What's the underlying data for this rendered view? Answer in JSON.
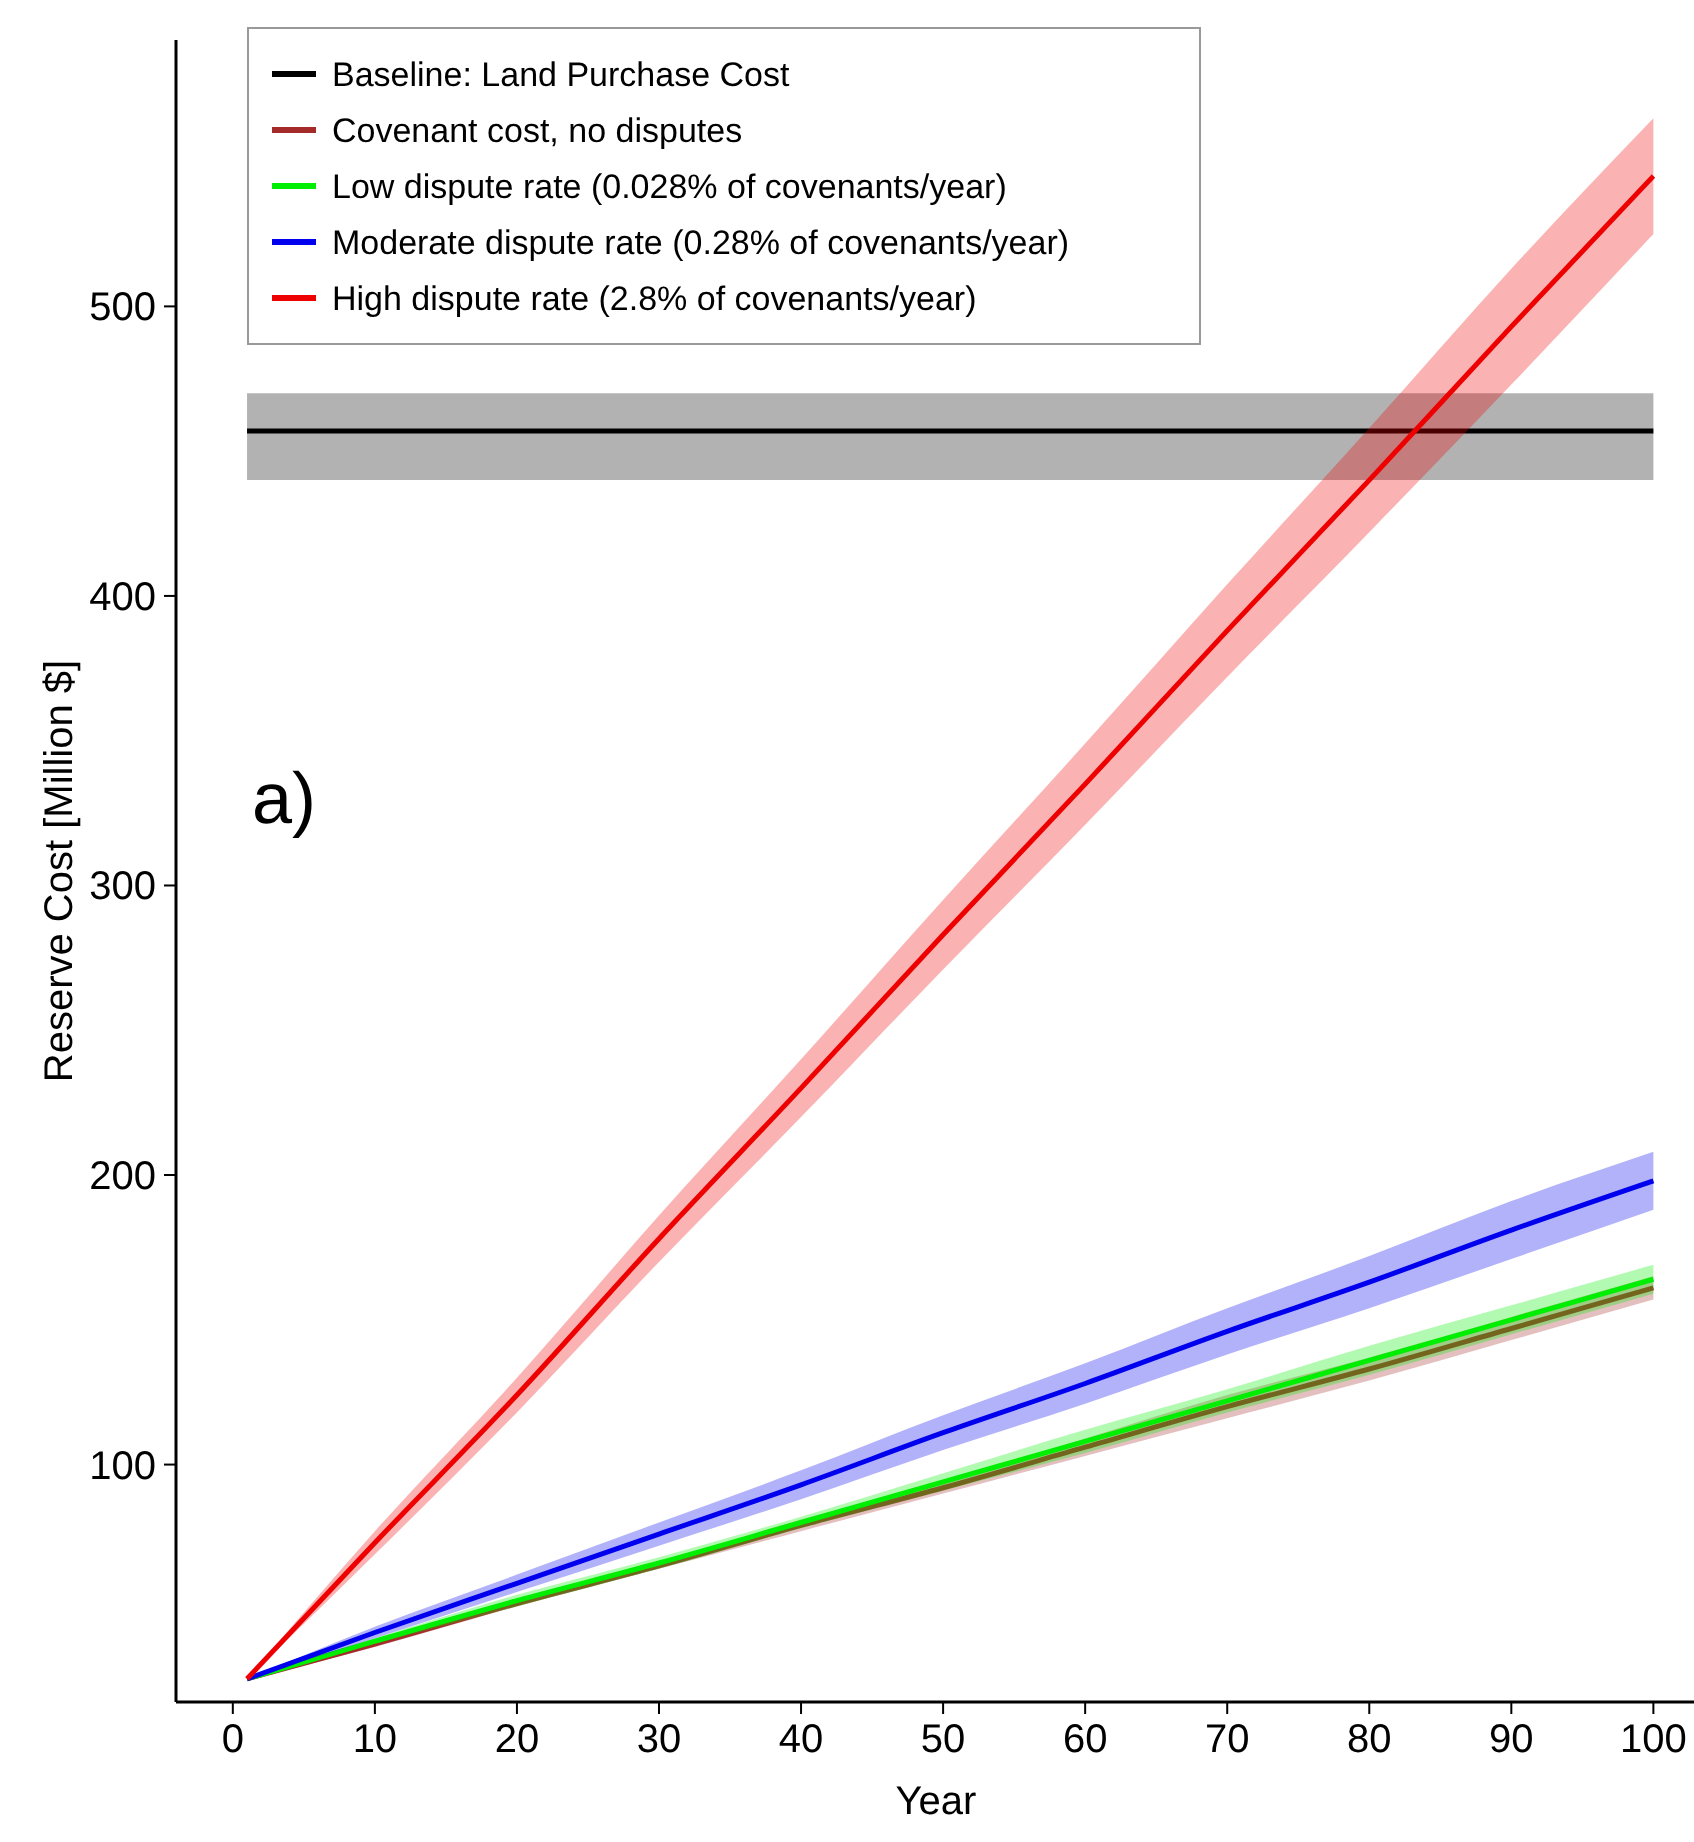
{
  "chart_data": {
    "type": "line",
    "xlabel": "Year",
    "ylabel": "Reserve Cost [Million $]",
    "xlim": [
      -4,
      103
    ],
    "ylim": [
      18,
      592
    ],
    "xticks": [
      0,
      10,
      20,
      30,
      40,
      50,
      60,
      70,
      80,
      90,
      100
    ],
    "yticks": [
      100,
      200,
      300,
      400,
      500
    ],
    "grid": false,
    "legend": "top left",
    "annotations": [
      "a)"
    ],
    "series": [
      {
        "name": "Baseline: Land Purchase Cost",
        "color": "#000000",
        "x": [
          1,
          100
        ],
        "values": [
          457,
          457
        ],
        "lower": [
          440,
          440
        ],
        "upper": [
          470,
          470
        ]
      },
      {
        "name": "Covenant cost, no disputes",
        "color": "#a52a2a",
        "x": [
          1,
          10,
          20,
          30,
          40,
          50,
          60,
          70,
          80,
          90,
          100
        ],
        "values": [
          26,
          38,
          52,
          65,
          79,
          92,
          106,
          120,
          133,
          147,
          161
        ],
        "lower": [
          26,
          37,
          51,
          64,
          77,
          90,
          103,
          116,
          129,
          143,
          157
        ],
        "upper": [
          26,
          39,
          53,
          66,
          81,
          94,
          109,
          124,
          137,
          151,
          165
        ]
      },
      {
        "name": "Low dispute rate (0.028% of covenants/year)",
        "color": "#00ee00",
        "x": [
          1,
          10,
          20,
          30,
          40,
          50,
          60,
          70,
          80,
          90,
          100
        ],
        "values": [
          26,
          39,
          53,
          66,
          80,
          94,
          108,
          122,
          136,
          150,
          164
        ],
        "lower": [
          26,
          38,
          51,
          64,
          78,
          91,
          104,
          118,
          131,
          145,
          159
        ],
        "upper": [
          26,
          40,
          55,
          68,
          82,
          97,
          112,
          126,
          141,
          155,
          169
        ]
      },
      {
        "name": "Moderate dispute rate (0.28% of covenants/year)",
        "color": "#0000ee",
        "x": [
          1,
          10,
          20,
          30,
          40,
          50,
          60,
          70,
          80,
          90,
          100
        ],
        "values": [
          26,
          42,
          59,
          76,
          93,
          111,
          128,
          146,
          163,
          181,
          198
        ],
        "lower": [
          26,
          40,
          56,
          72,
          88,
          105,
          121,
          138,
          154,
          171,
          188
        ],
        "upper": [
          26,
          44,
          62,
          80,
          98,
          117,
          135,
          154,
          172,
          191,
          208
        ]
      },
      {
        "name": "High dispute rate (2.8% of covenants/year)",
        "color": "#ee0000",
        "x": [
          1,
          10,
          20,
          30,
          40,
          50,
          60,
          70,
          80,
          90,
          100
        ],
        "values": [
          26,
          73,
          124,
          178,
          230,
          283,
          335,
          388,
          440,
          493,
          545
        ],
        "lower": [
          26,
          69,
          118,
          170,
          220,
          271,
          321,
          372,
          422,
          473,
          525
        ],
        "upper": [
          26,
          77,
          130,
          186,
          240,
          295,
          349,
          404,
          458,
          513,
          565
        ]
      }
    ]
  }
}
